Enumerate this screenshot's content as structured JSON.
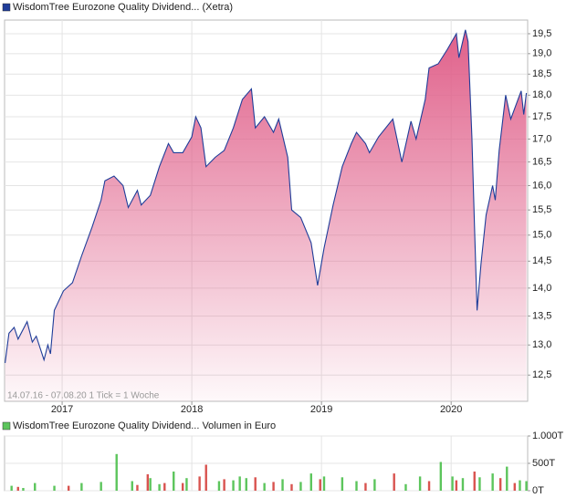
{
  "chart_data": [
    {
      "type": "line",
      "title": "WisdomTree Eurozone Quality Dividend... (Xetra)",
      "note": "14.07.16 - 07.08.20   1 Tick = 1 Woche",
      "color": "#1f3d99",
      "fill": "#e0608a",
      "log": true,
      "grid": true,
      "xlim": [
        2016.556,
        2020.59
      ],
      "xticks": [
        2017,
        2018,
        2019,
        2020
      ],
      "ylim": [
        12.08,
        19.85
      ],
      "yticks": [
        {
          "value": 12.5,
          "label": "12,5"
        },
        {
          "value": 13,
          "label": "13,0"
        },
        {
          "value": 13.5,
          "label": "13,5"
        },
        {
          "value": 14,
          "label": "14,0"
        },
        {
          "value": 14.5,
          "label": "14,5"
        },
        {
          "value": 15,
          "label": "15,0"
        },
        {
          "value": 15.5,
          "label": "15,5"
        },
        {
          "value": 16,
          "label": "16,0"
        },
        {
          "value": 16.5,
          "label": "16,5"
        },
        {
          "value": 17,
          "label": "17,0"
        },
        {
          "value": 17.5,
          "label": "17,5"
        },
        {
          "value": 18,
          "label": "18,0"
        },
        {
          "value": 18.5,
          "label": "18,5"
        },
        {
          "value": 19,
          "label": "19,0"
        },
        {
          "value": 19.5,
          "label": "19,5"
        }
      ],
      "x": [
        2016.56,
        2016.59,
        2016.63,
        2016.66,
        2016.73,
        2016.77,
        2016.8,
        2016.86,
        2016.89,
        2016.91,
        2016.94,
        2017.01,
        2017.08,
        2017.15,
        2017.23,
        2017.3,
        2017.33,
        2017.4,
        2017.47,
        2017.51,
        2017.58,
        2017.61,
        2017.68,
        2017.75,
        2017.82,
        2017.86,
        2017.93,
        2018.0,
        2018.03,
        2018.07,
        2018.11,
        2018.18,
        2018.25,
        2018.32,
        2018.39,
        2018.46,
        2018.49,
        2018.56,
        2018.63,
        2018.67,
        2018.74,
        2018.77,
        2018.84,
        2018.92,
        2018.97,
        2019.02,
        2019.09,
        2019.16,
        2019.23,
        2019.27,
        2019.34,
        2019.37,
        2019.44,
        2019.55,
        2019.62,
        2019.69,
        2019.73,
        2019.8,
        2019.83,
        2019.9,
        2019.97,
        2020.04,
        2020.06,
        2020.11,
        2020.13,
        2020.16,
        2020.18,
        2020.2,
        2020.23,
        2020.27,
        2020.32,
        2020.34,
        2020.37,
        2020.42,
        2020.46,
        2020.54,
        2020.56,
        2020.58
      ],
      "values": [
        12.7,
        13.2,
        13.3,
        13.1,
        13.4,
        13.05,
        13.15,
        12.75,
        13.0,
        12.85,
        13.6,
        13.95,
        14.1,
        14.6,
        15.15,
        15.7,
        16.1,
        16.2,
        16.0,
        15.55,
        15.9,
        15.6,
        15.8,
        16.4,
        16.9,
        16.7,
        16.7,
        17.05,
        17.5,
        17.25,
        16.4,
        16.6,
        16.75,
        17.25,
        17.9,
        18.15,
        17.25,
        17.5,
        17.15,
        17.45,
        16.6,
        15.5,
        15.35,
        14.85,
        14.05,
        14.75,
        15.6,
        16.4,
        16.9,
        17.15,
        16.9,
        16.7,
        17.05,
        17.45,
        16.5,
        17.4,
        17.0,
        17.9,
        18.65,
        18.75,
        19.1,
        19.5,
        18.9,
        19.6,
        19.3,
        17.05,
        15.15,
        13.6,
        14.45,
        15.4,
        16.0,
        15.7,
        16.75,
        18.0,
        17.45,
        18.1,
        17.55,
        18.05
      ]
    },
    {
      "type": "bar",
      "title": "WisdomTree Eurozone Quality Dividend... Volumen in Euro",
      "color": "#5cc55c",
      "xlim": [
        2016.556,
        2020.59
      ],
      "ylim": [
        0,
        1000000
      ],
      "yticks": [
        {
          "value": 0,
          "label": "0T"
        },
        {
          "value": 500000,
          "label": "500T"
        },
        {
          "value": 1000000,
          "label": "1.000T"
        }
      ],
      "series": [
        {
          "color": "#5cc55c",
          "x": [
            2016.61,
            2016.7,
            2016.79,
            2016.94,
            2017.15,
            2017.3,
            2017.42,
            2017.54,
            2017.68,
            2017.75,
            2017.86,
            2017.96,
            2018.21,
            2018.32,
            2018.37,
            2018.42,
            2018.56,
            2018.7,
            2018.84,
            2018.92,
            2019.02,
            2019.16,
            2019.27,
            2019.41,
            2019.65,
            2019.76,
            2019.92,
            2020.01,
            2020.09,
            2020.22,
            2020.32,
            2020.43,
            2020.53,
            2020.58
          ],
          "values": [
            90000,
            50000,
            140000,
            90000,
            140000,
            160000,
            670000,
            175000,
            230000,
            120000,
            350000,
            230000,
            175000,
            190000,
            260000,
            230000,
            140000,
            210000,
            160000,
            315000,
            260000,
            245000,
            175000,
            210000,
            120000,
            260000,
            525000,
            260000,
            230000,
            245000,
            315000,
            440000,
            190000,
            175000
          ]
        },
        {
          "color": "#d9534f",
          "x": [
            2016.66,
            2017.05,
            2017.58,
            2017.66,
            2017.79,
            2017.93,
            2018.06,
            2018.11,
            2018.25,
            2018.49,
            2018.63,
            2018.77,
            2018.99,
            2019.34,
            2019.56,
            2019.83,
            2020.04,
            2020.18,
            2020.38,
            2020.49
          ],
          "values": [
            70000,
            90000,
            105000,
            300000,
            140000,
            140000,
            260000,
            475000,
            210000,
            245000,
            160000,
            120000,
            210000,
            140000,
            315000,
            175000,
            190000,
            350000,
            230000,
            140000
          ]
        }
      ]
    }
  ]
}
